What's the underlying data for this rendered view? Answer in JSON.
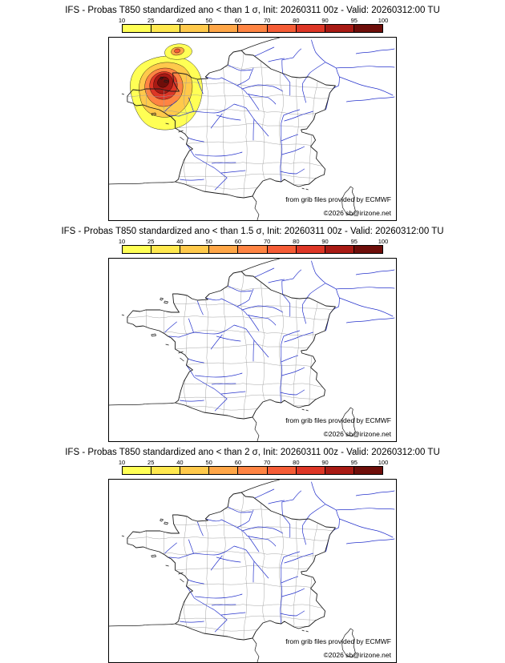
{
  "panels": [
    {
      "title": "IFS - Probas T850  standardized ano < than 1 σ, Init: 20260311 00z - Valid: 20260312:00 TU"
    },
    {
      "title": "IFS - Probas T850  standardized ano < than 1.5 σ, Init: 20260311 00z - Valid: 20260312:00 TU"
    },
    {
      "title": "IFS - Probas T850  standardized ano < than 2 σ, Init: 20260311 00z - Valid: 20260312:00 TU"
    }
  ],
  "colorbar": {
    "tick_labels": [
      "10",
      "25",
      "40",
      "50",
      "60",
      "70",
      "80",
      "90",
      "95",
      "100"
    ],
    "segment_colors": [
      "#ffff55",
      "#ffe84e",
      "#ffc94b",
      "#ffa647",
      "#ff8443",
      "#f55c36",
      "#dd3626",
      "#a81a14",
      "#6e0e0a"
    ]
  },
  "credits": {
    "line1": "from grib files provided by ECMWF",
    "line2": "©2026 sb@irizone.net"
  },
  "map": {
    "colors": {
      "coast": "#1a1a1a",
      "river": "#2633cc",
      "department": "#9a9a9a",
      "frame": "#000000"
    }
  },
  "chart_data": {
    "type": "heatmap",
    "quantity": "Probability (%) that T850 standardized anomaly is below threshold",
    "thresholds_sigma": [
      1,
      1.5,
      2
    ],
    "scale_percent": [
      10,
      25,
      40,
      50,
      60,
      70,
      80,
      90,
      95,
      100
    ],
    "panels_summary": [
      "Panel 1 (< 1 σ): maximum probabilities up to ~100% over Brittany and the adjacent Atlantic, secondary ~50-60% cell over the English Channel",
      "Panel 2 (< 1.5 σ): no shaded probabilities (all below 10%)",
      "Panel 3 (< 2 σ): no shaded probabilities (all below 10%)"
    ]
  }
}
